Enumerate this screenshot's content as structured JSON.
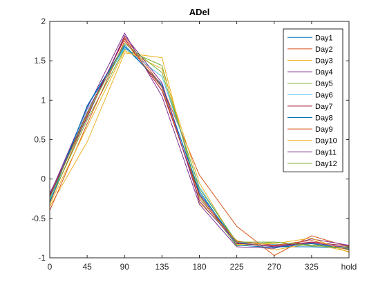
{
  "chart_data": {
    "type": "line",
    "title": "ADel",
    "xlabel": "",
    "ylabel": "",
    "categories": [
      "0",
      "45",
      "90",
      "135",
      "180",
      "225",
      "270",
      "325",
      "hold"
    ],
    "ylim": [
      -1,
      2
    ],
    "yticks": [
      "-1",
      "-0.5",
      "0",
      "0.5",
      "1",
      "1.5",
      "2"
    ],
    "grid": false,
    "legend_position": "top-right",
    "series": [
      {
        "name": "Day1",
        "color": "#0072BD",
        "values": [
          -0.25,
          0.92,
          1.68,
          1.2,
          -0.18,
          -0.8,
          -0.86,
          -0.86,
          -0.88
        ]
      },
      {
        "name": "Day2",
        "color": "#D95319",
        "values": [
          -0.3,
          0.8,
          1.8,
          1.18,
          0.05,
          -0.6,
          -0.97,
          -0.72,
          -0.86
        ]
      },
      {
        "name": "Day3",
        "color": "#EDB120",
        "values": [
          -0.35,
          0.47,
          1.6,
          1.54,
          -0.3,
          -0.78,
          -0.9,
          -0.82,
          -0.92
        ]
      },
      {
        "name": "Day4",
        "color": "#7E2F8E",
        "values": [
          -0.2,
          0.9,
          1.85,
          1.05,
          -0.32,
          -0.86,
          -0.88,
          -0.76,
          -0.84
        ]
      },
      {
        "name": "Day5",
        "color": "#77AC30",
        "values": [
          -0.28,
          0.75,
          1.65,
          1.44,
          -0.22,
          -0.85,
          -0.8,
          -0.85,
          -0.86
        ]
      },
      {
        "name": "Day6",
        "color": "#4DBEEE",
        "values": [
          -0.26,
          0.88,
          1.66,
          1.3,
          -0.1,
          -0.8,
          -0.83,
          -0.82,
          -0.87
        ]
      },
      {
        "name": "Day7",
        "color": "#A2142F",
        "values": [
          -0.22,
          0.84,
          1.78,
          1.12,
          -0.2,
          -0.82,
          -0.85,
          -0.8,
          -0.85
        ]
      },
      {
        "name": "Day8",
        "color": "#0072BD",
        "values": [
          -0.3,
          0.93,
          1.7,
          1.18,
          -0.15,
          -0.84,
          -0.87,
          -0.82,
          -0.89
        ]
      },
      {
        "name": "Day9",
        "color": "#D95319",
        "values": [
          -0.4,
          0.7,
          1.75,
          1.16,
          -0.25,
          -0.79,
          -0.84,
          -0.78,
          -0.9
        ]
      },
      {
        "name": "Day10",
        "color": "#EDB120",
        "values": [
          -0.32,
          0.66,
          1.63,
          1.4,
          -0.05,
          -0.83,
          -0.82,
          -0.75,
          -0.93
        ]
      },
      {
        "name": "Day11",
        "color": "#7E2F8E",
        "values": [
          -0.18,
          0.78,
          1.82,
          1.22,
          -0.28,
          -0.81,
          -0.86,
          -0.81,
          -0.87
        ]
      },
      {
        "name": "Day12",
        "color": "#77AC30",
        "values": [
          -0.24,
          0.82,
          1.72,
          1.35,
          -0.12,
          -0.8,
          -0.8,
          -0.84,
          -0.88
        ]
      }
    ]
  }
}
